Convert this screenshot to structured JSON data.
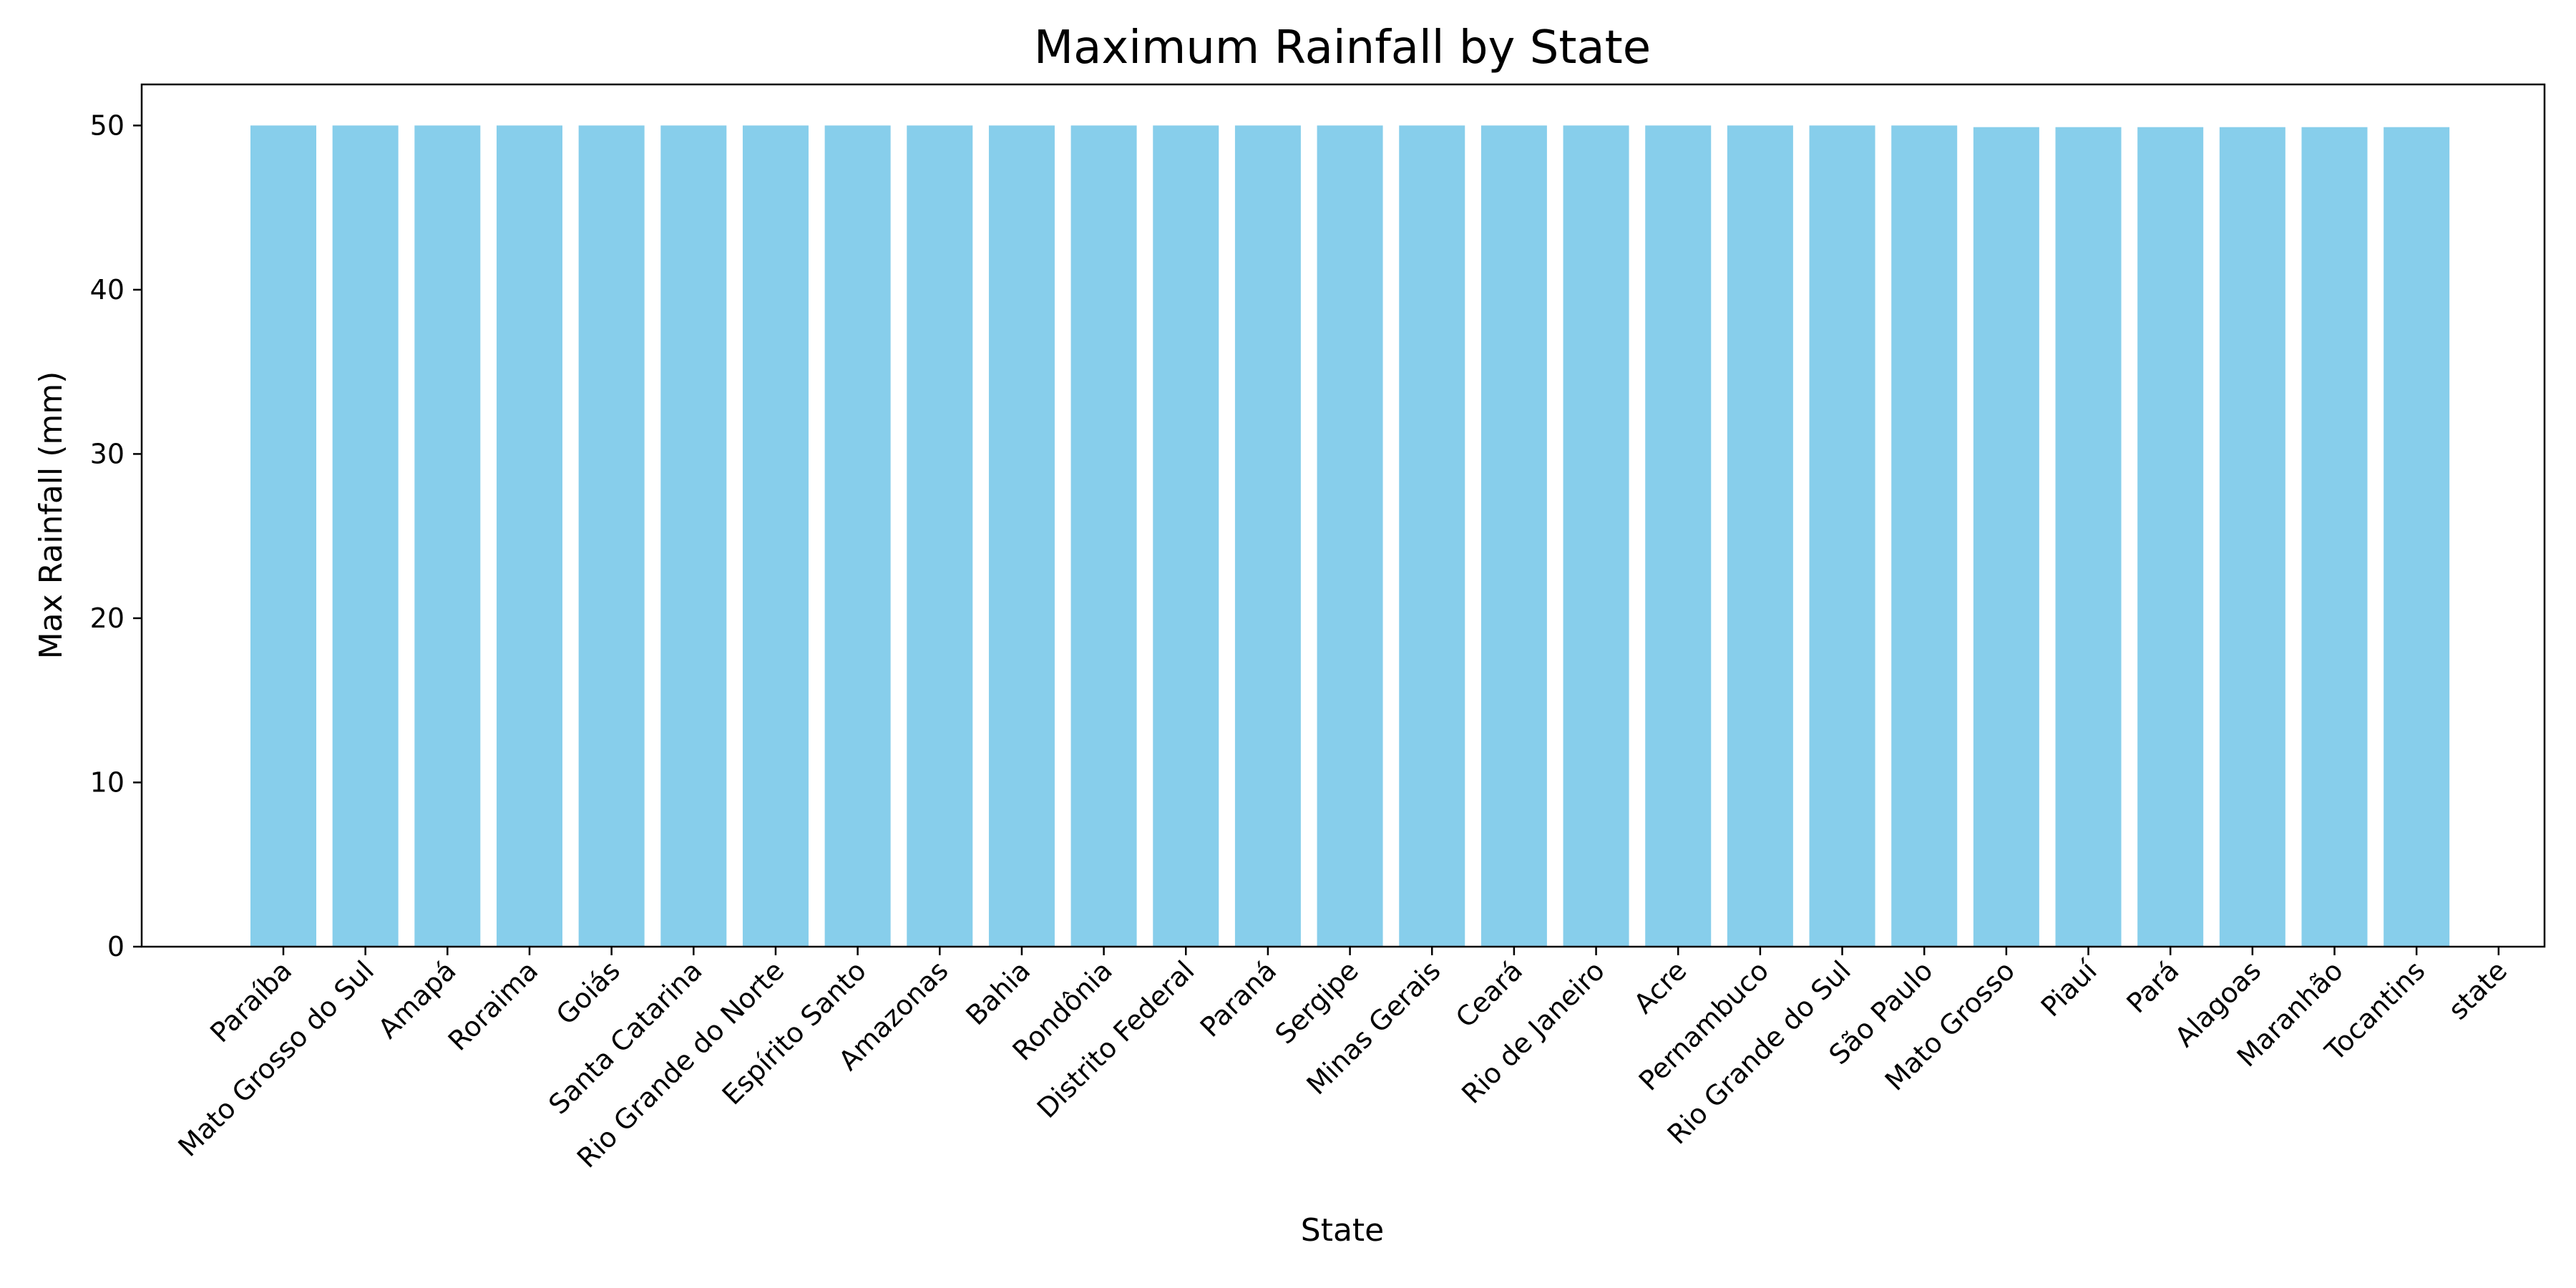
{
  "chart_data": {
    "type": "bar",
    "title": "Maximum Rainfall by State",
    "xlabel": "State",
    "ylabel": "Max Rainfall (mm)",
    "ylim": [
      0,
      52.5
    ],
    "yticks": [
      0,
      10,
      20,
      30,
      40,
      50
    ],
    "bar_color": "#87CEEB",
    "grid": false,
    "legend": "none",
    "categories": [
      "Paraíba",
      "Mato Grosso do Sul",
      "Amapá",
      "Roraima",
      "Goiás",
      "Santa Catarina",
      "Rio Grande do Norte",
      "Espírito Santo",
      "Amazonas",
      "Bahia",
      "Rondônia",
      "Distrito Federal",
      "Paraná",
      "Sergipe",
      "Minas Gerais",
      "Ceará",
      "Rio de Janeiro",
      "Acre",
      "Pernambuco",
      "Rio Grande do Sul",
      "São Paulo",
      "Mato Grosso",
      "Piauí",
      "Pará",
      "Alagoas",
      "Maranhão",
      "Tocantins",
      "state"
    ],
    "values": [
      50,
      50,
      50,
      50,
      50,
      50,
      50,
      50,
      50,
      50,
      50,
      50,
      50,
      50,
      50,
      50,
      50,
      50,
      50,
      50,
      50,
      49.9,
      49.9,
      49.9,
      49.9,
      49.9,
      49.9,
      null
    ]
  }
}
